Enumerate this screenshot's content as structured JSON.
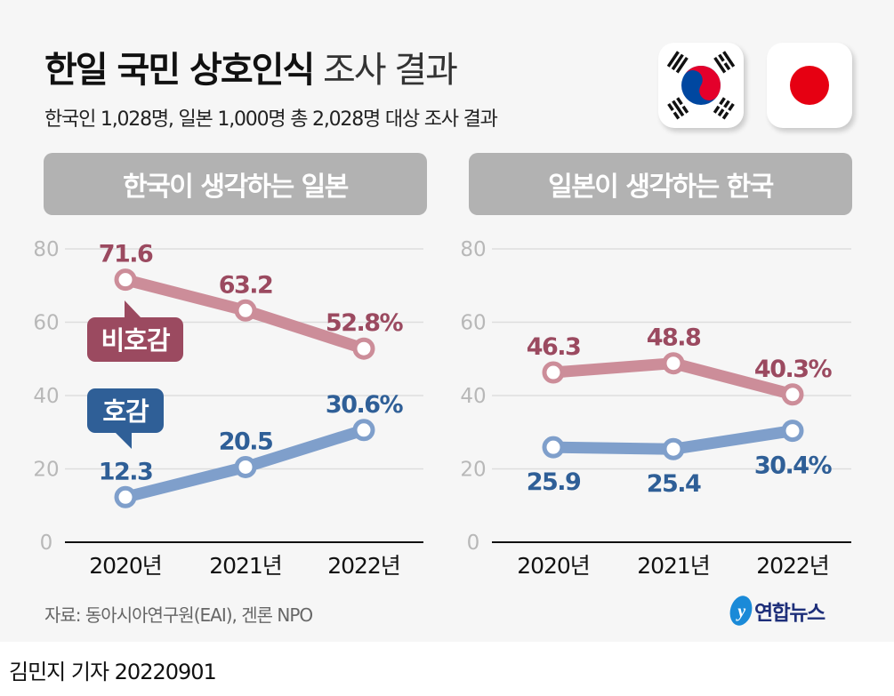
{
  "title": {
    "bold": "한일 국민 상호인식",
    "light": "조사 결과"
  },
  "subtitle": "한국인 1,028명, 일본 1,000명 총 2,028명 대상 조사 결과",
  "flags": [
    "korea-flag-icon",
    "japan-flag-icon"
  ],
  "colors": {
    "unfavorable_line": "#cc8d99",
    "unfavorable_text": "#9b4a60",
    "favorable_line": "#7f9fcb",
    "favorable_text": "#2f5f97",
    "header_bg": "#b2b2b2",
    "grid": "#dddddd"
  },
  "legend": {
    "unfavorable": "비호감",
    "favorable": "호감"
  },
  "chart_data": [
    {
      "type": "line",
      "title": "한국이 생각하는 일본",
      "categories": [
        "2020년",
        "2021년",
        "2022년"
      ],
      "yticks": [
        "0",
        "20",
        "40",
        "60",
        "80"
      ],
      "ylim": [
        0,
        80
      ],
      "grid": true,
      "series": [
        {
          "name": "비호감",
          "values": [
            71.6,
            63.2,
            52.8
          ],
          "labels": [
            "71.6",
            "63.2",
            "52.8%"
          ]
        },
        {
          "name": "호감",
          "values": [
            12.3,
            20.5,
            30.6
          ],
          "labels": [
            "12.3",
            "20.5",
            "30.6%"
          ]
        }
      ]
    },
    {
      "type": "line",
      "title": "일본이 생각하는 한국",
      "categories": [
        "2020년",
        "2021년",
        "2022년"
      ],
      "yticks": [
        "0",
        "20",
        "40",
        "60",
        "80"
      ],
      "ylim": [
        0,
        80
      ],
      "grid": true,
      "series": [
        {
          "name": "비호감",
          "values": [
            46.3,
            48.8,
            40.3
          ],
          "labels": [
            "46.3",
            "48.8",
            "40.3%"
          ]
        },
        {
          "name": "호감",
          "values": [
            25.9,
            25.4,
            30.4
          ],
          "labels": [
            "25.9",
            "25.4",
            "30.4%"
          ]
        }
      ]
    }
  ],
  "source": "자료: 동아시아연구원(EAI), 겐론 NPO",
  "logo": "연합뉴스",
  "byline": "김민지 기자  20220901"
}
